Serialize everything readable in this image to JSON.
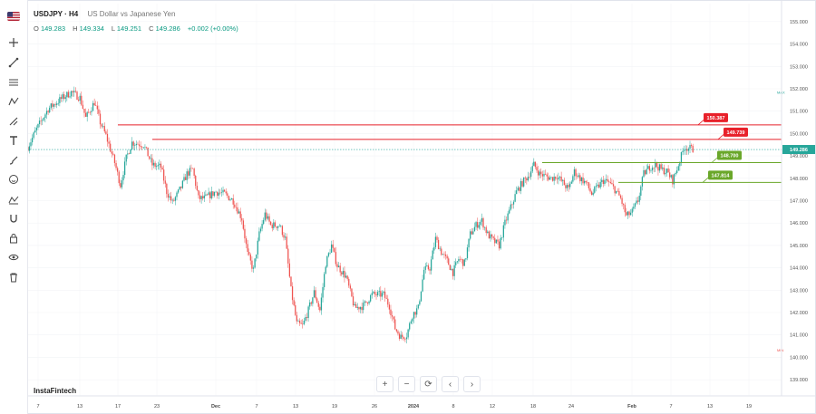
{
  "header": {
    "symbol": "USDJPY · H4",
    "name": "US Dollar vs Japanese Yen",
    "open_label": "O",
    "open": "149.283",
    "high_label": "H",
    "high": "149.334",
    "low_label": "L",
    "low": "149.251",
    "close_label": "C",
    "close": "149.286",
    "change": "+0.002 (+0.00%)"
  },
  "brand": "InstaFintech",
  "toolbar": {
    "icons": [
      "cursor-cross-icon",
      "trend-line-icon",
      "fib-icon",
      "pattern-icon",
      "projection-icon",
      "text-icon",
      "brush-icon",
      "emoji-icon",
      "ruler-icon",
      "magnet-icon",
      "lock-icon",
      "eye-icon",
      "trash-icon"
    ]
  },
  "nav": {
    "zoom_in": "+",
    "zoom_out": "−",
    "reset": "⟳",
    "back": "‹",
    "forward": "›"
  },
  "colors": {
    "up": "#26a69a",
    "down": "#ef5350",
    "resistance": "#e8202a",
    "support": "#6aa72a",
    "price": "#26a69a"
  },
  "chart_data": {
    "type": "candlestick",
    "title": "",
    "y_axis": {
      "range": [
        138.6,
        155.4
      ],
      "ticks": [
        155.0,
        154.0,
        153.0,
        152.0,
        151.0,
        150.0,
        149.0,
        148.0,
        147.0,
        146.0,
        145.0,
        144.0,
        143.0,
        142.0,
        141.0,
        140.0,
        139.0
      ],
      "tick_labels": [
        "155.000",
        "154.000",
        "153.000",
        "152.000",
        "151.000",
        "150.000",
        "149.000",
        "148.000",
        "147.000",
        "146.000",
        "145.000",
        "144.000",
        "143.000",
        "142.000",
        "141.000",
        "140.000",
        "139.000"
      ]
    },
    "x_axis": {
      "labels": [
        "7",
        "13",
        "17",
        "23",
        "Dec",
        "7",
        "13",
        "19",
        "26",
        "2024",
        "8",
        "12",
        "18",
        "24",
        "Feb",
        "7",
        "13",
        "19"
      ]
    },
    "current_price": "149.286",
    "high_marker": "MAX",
    "low_marker": "MIN",
    "levels": [
      {
        "label": "150.387",
        "value": 150.387,
        "kind": "resistance"
      },
      {
        "label": "149.739",
        "value": 149.739,
        "kind": "resistance"
      },
      {
        "label": "148.700",
        "value": 148.7,
        "kind": "support"
      },
      {
        "label": "147.814",
        "value": 147.814,
        "kind": "support"
      }
    ],
    "path": [
      [
        0,
        149.4
      ],
      [
        6,
        150.2
      ],
      [
        14,
        151.1
      ],
      [
        24,
        151.6
      ],
      [
        30,
        151.85
      ],
      [
        36,
        151.6
      ],
      [
        40,
        150.7
      ],
      [
        46,
        151.4
      ],
      [
        50,
        150.5
      ],
      [
        54,
        149.9
      ],
      [
        60,
        148.7
      ],
      [
        64,
        147.7
      ],
      [
        68,
        148.9
      ],
      [
        72,
        149.6
      ],
      [
        80,
        149.5
      ],
      [
        86,
        148.6
      ],
      [
        92,
        148.5
      ],
      [
        96,
        147.4
      ],
      [
        100,
        146.9
      ],
      [
        106,
        147.6
      ],
      [
        110,
        148.2
      ],
      [
        114,
        148.4
      ],
      [
        118,
        147.1
      ],
      [
        122,
        147.1
      ],
      [
        130,
        147.4
      ],
      [
        136,
        147.3
      ],
      [
        142,
        147.0
      ],
      [
        148,
        146.2
      ],
      [
        152,
        144.6
      ],
      [
        156,
        143.9
      ],
      [
        160,
        145.5
      ],
      [
        164,
        146.4
      ],
      [
        168,
        145.9
      ],
      [
        174,
        145.9
      ],
      [
        178,
        145.3
      ],
      [
        182,
        143.0
      ],
      [
        186,
        141.5
      ],
      [
        190,
        141.4
      ],
      [
        194,
        142.1
      ],
      [
        198,
        142.9
      ],
      [
        202,
        142.1
      ],
      [
        206,
        144.2
      ],
      [
        210,
        145.0
      ],
      [
        214,
        144.1
      ],
      [
        220,
        143.6
      ],
      [
        226,
        142.2
      ],
      [
        232,
        142.3
      ],
      [
        238,
        142.8
      ],
      [
        246,
        142.8
      ],
      [
        250,
        142.3
      ],
      [
        254,
        141.3
      ],
      [
        258,
        140.9
      ],
      [
        262,
        141.0
      ],
      [
        266,
        141.9
      ],
      [
        270,
        142.2
      ],
      [
        274,
        143.9
      ],
      [
        278,
        144.0
      ],
      [
        282,
        145.3
      ],
      [
        286,
        144.7
      ],
      [
        290,
        144.3
      ],
      [
        294,
        143.8
      ],
      [
        298,
        144.4
      ],
      [
        302,
        144.2
      ],
      [
        306,
        145.5
      ],
      [
        310,
        145.9
      ],
      [
        314,
        146.1
      ],
      [
        318,
        145.5
      ],
      [
        322,
        145.2
      ],
      [
        326,
        145.0
      ],
      [
        330,
        146.0
      ],
      [
        334,
        146.7
      ],
      [
        338,
        147.4
      ],
      [
        342,
        147.8
      ],
      [
        346,
        148.1
      ],
      [
        350,
        148.6
      ],
      [
        354,
        148.2
      ],
      [
        358,
        148.1
      ],
      [
        362,
        148.0
      ],
      [
        366,
        148.1
      ],
      [
        370,
        147.8
      ],
      [
        374,
        147.5
      ],
      [
        378,
        148.3
      ],
      [
        382,
        148.0
      ],
      [
        386,
        147.8
      ],
      [
        390,
        147.3
      ],
      [
        394,
        147.6
      ],
      [
        398,
        147.9
      ],
      [
        402,
        147.8
      ],
      [
        406,
        147.5
      ],
      [
        410,
        147.1
      ],
      [
        414,
        146.3
      ],
      [
        418,
        146.5
      ],
      [
        422,
        147.0
      ],
      [
        426,
        148.2
      ],
      [
        430,
        148.5
      ],
      [
        434,
        148.6
      ],
      [
        438,
        148.4
      ],
      [
        442,
        148.3
      ],
      [
        446,
        147.9
      ],
      [
        450,
        148.6
      ],
      [
        454,
        149.4
      ],
      [
        458,
        149.33
      ],
      [
        460,
        149.29
      ]
    ]
  }
}
